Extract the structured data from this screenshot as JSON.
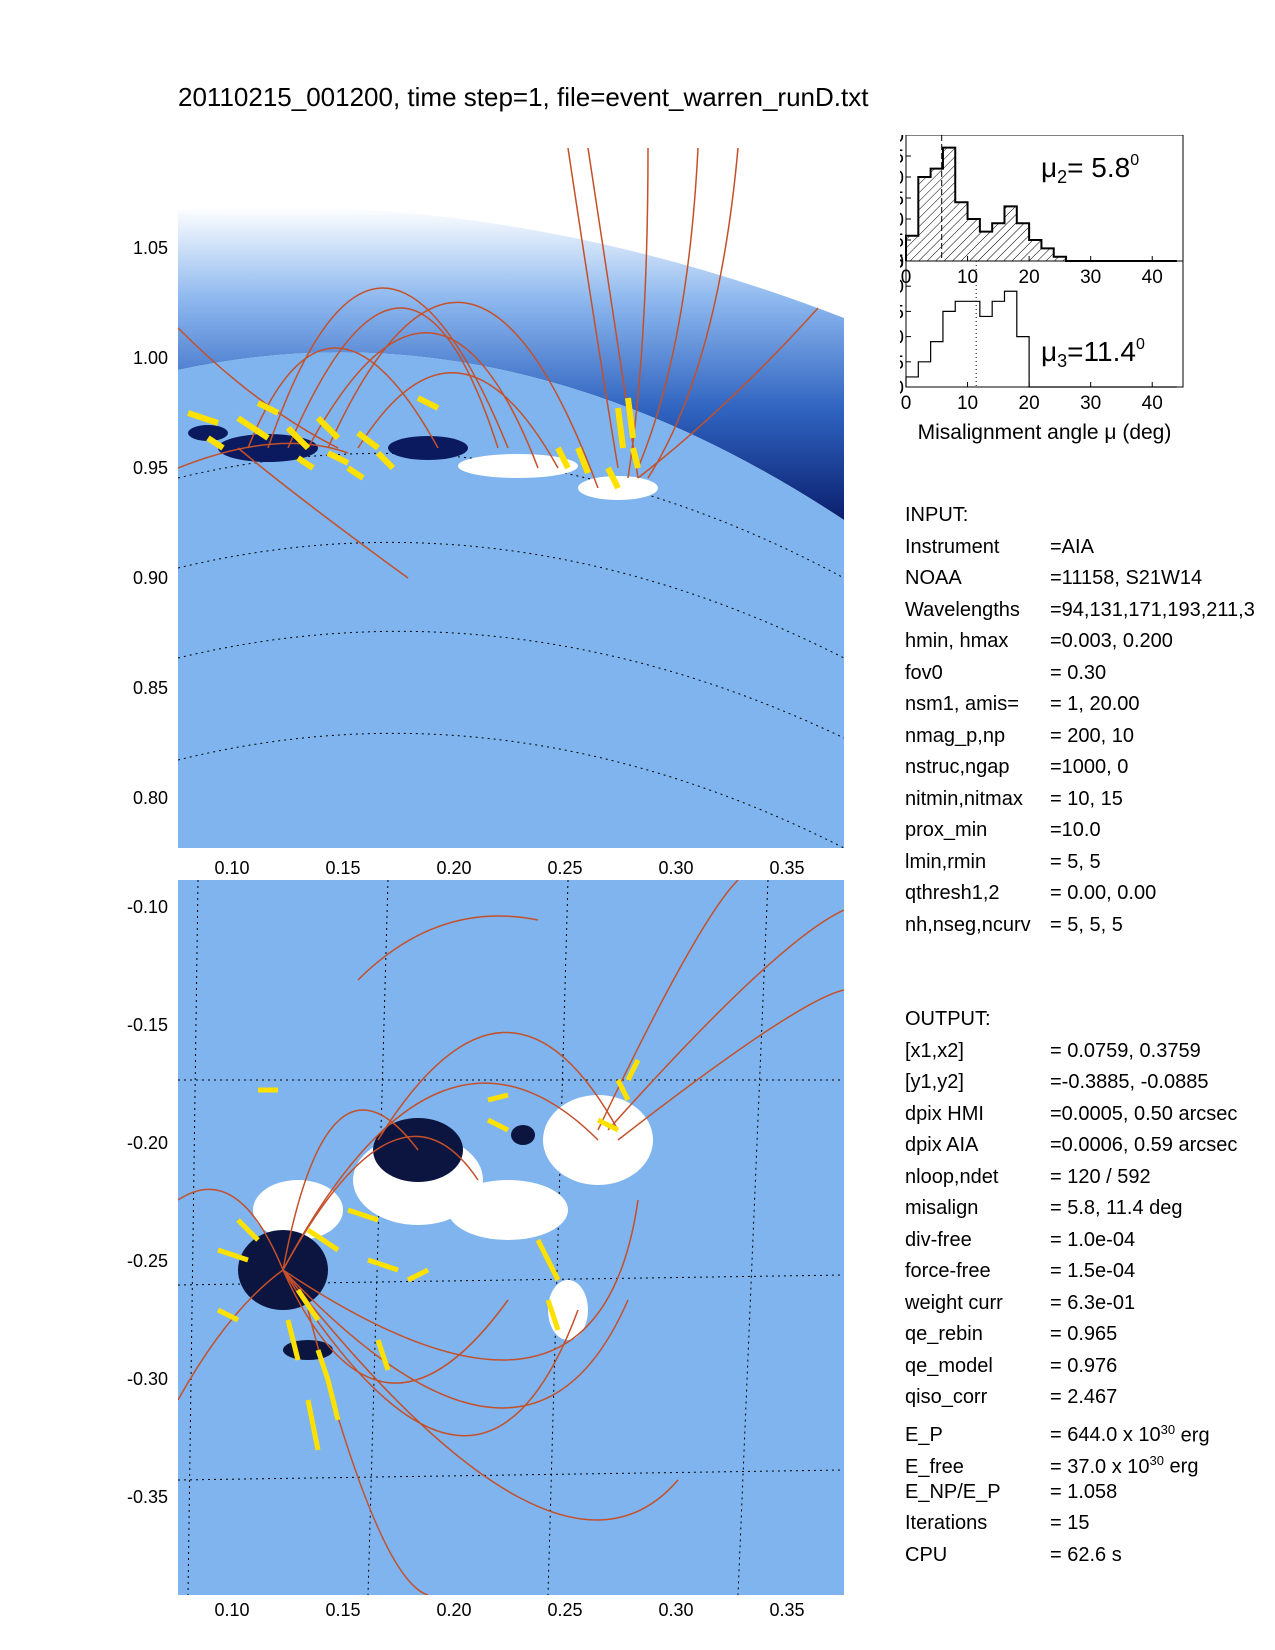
{
  "title": "20110215_001200, time step=1, file=event_warren_runD.txt",
  "top_panel": {
    "yticks": [
      "1.05",
      "1.00",
      "0.95",
      "0.90",
      "0.85",
      "0.80"
    ],
    "xticks": [
      "0.10",
      "0.15",
      "0.20",
      "0.25",
      "0.30",
      "0.35"
    ]
  },
  "bottom_panel": {
    "yticks": [
      "-0.10",
      "-0.15",
      "-0.20",
      "-0.25",
      "-0.30",
      "-0.35"
    ],
    "xticks": [
      "0.10",
      "0.15",
      "0.20",
      "0.25",
      "0.30",
      "0.35"
    ]
  },
  "chart_data": [
    {
      "type": "bar",
      "bin_edges": [
        0,
        2,
        4,
        6,
        8,
        10,
        12,
        14,
        16,
        18,
        20,
        22,
        24,
        26,
        28,
        30,
        32,
        34,
        36,
        38,
        40,
        42,
        44
      ],
      "values": [
        6,
        20,
        22,
        27,
        14,
        10,
        7,
        9,
        13,
        9,
        5,
        3,
        1,
        0,
        0,
        0,
        0,
        0,
        0,
        0,
        0,
        0
      ],
      "median": 5.8,
      "ylim": [
        0,
        30
      ],
      "xlim": [
        0,
        45
      ],
      "yticks": [
        "0",
        "5",
        "10",
        "15",
        "20",
        "25",
        "30"
      ],
      "xticks": [
        "0",
        "10",
        "20",
        "30",
        "40"
      ],
      "annotation_symbol": "μ",
      "annotation_sub": "2",
      "annotation_value": "= 5.8",
      "annotation_sup": "0",
      "hatched": true
    },
    {
      "type": "bar",
      "bin_edges": [
        0,
        2,
        4,
        6,
        8,
        10,
        12,
        14,
        16,
        18,
        20,
        22,
        24,
        26,
        28,
        30,
        32,
        34,
        36,
        38,
        40,
        42,
        44
      ],
      "values": [
        2,
        5,
        9,
        15,
        17,
        17,
        14,
        17,
        19,
        10,
        0,
        0,
        0,
        0,
        0,
        0,
        0,
        0,
        0,
        0,
        0,
        0
      ],
      "median": 11.4,
      "ylim": [
        0,
        25
      ],
      "xlim": [
        0,
        45
      ],
      "yticks": [
        "0",
        "5",
        "10",
        "15",
        "20",
        "25"
      ],
      "xticks": [
        "0",
        "10",
        "20",
        "30",
        "40"
      ],
      "xlabel": "Misalignment angle μ (deg)",
      "annotation_symbol": "μ",
      "annotation_sub": "3",
      "annotation_value": "=11.4",
      "annotation_sup": "0",
      "hatched": false
    }
  ],
  "input": {
    "header": "INPUT:",
    "rows": [
      {
        "key": "Instrument",
        "val": "=AIA"
      },
      {
        "key": "NOAA",
        "val": "=11158, S21W14"
      },
      {
        "key": "Wavelengths",
        "val": "=94,131,171,193,211,3"
      },
      {
        "key": "hmin, hmax",
        "val": "=0.003, 0.200"
      },
      {
        "key": "fov0",
        "val": "= 0.30"
      },
      {
        "key": "nsm1, amis=",
        "val": "=   1, 20.00"
      },
      {
        "key": "nmag_p,np",
        "val": "= 200,   10"
      },
      {
        "key": "nstruc,ngap",
        "val": "=1000,    0"
      },
      {
        "key": "nitmin,nitmax",
        "val": "=  10,   15"
      },
      {
        "key": "prox_min",
        "val": "=10.0"
      },
      {
        "key": "lmin,rmin",
        "val": "=   5,    5"
      },
      {
        "key": "qthresh1,2",
        "val": "= 0.00,  0.00"
      },
      {
        "key": "nh,nseg,ncurv",
        "val": "= 5,  5,  5"
      }
    ]
  },
  "output": {
    "header": "OUTPUT:",
    "rows": [
      {
        "key": "[x1,x2]",
        "val": "= 0.0759,  0.3759"
      },
      {
        "key": "[y1,y2]",
        "val": "=-0.3885, -0.0885"
      },
      {
        "key": "dpix HMI",
        "val": "=0.0005,  0.50 arcsec"
      },
      {
        "key": "dpix AIA",
        "val": "=0.0006,  0.59 arcsec"
      },
      {
        "key": "nloop,ndet",
        "val": "= 120 /  592"
      },
      {
        "key": "misalign",
        "val": "=  5.8,  11.4 deg"
      },
      {
        "key": "div-free",
        "val": "= 1.0e-04"
      },
      {
        "key": "force-free",
        "val": "= 1.5e-04"
      },
      {
        "key": "weight curr",
        "val": "= 6.3e-01"
      },
      {
        "key": "qe_rebin",
        "val": "= 0.965"
      },
      {
        "key": "qe_model",
        "val": "= 0.976"
      },
      {
        "key": "qiso_corr",
        "val": "= 2.467"
      },
      {
        "key": "E_P",
        "val": "=  644.0 x 10",
        "sup": "30",
        "tail": " erg"
      },
      {
        "key": "E_free",
        "val": "=  37.0 x 10",
        "sup": "30",
        "tail": " erg"
      },
      {
        "key": "E_NP/E_P",
        "val": "= 1.058"
      },
      {
        "key": "Iterations",
        "val": "= 15"
      },
      {
        "key": "CPU",
        "val": "=    62.6 s"
      }
    ]
  },
  "colors": {
    "disk_blue": "#7fb4ee",
    "corona_dark": "#0a1f6e",
    "loop_red": "#c4502a",
    "loop_yellow": "#ffe100"
  }
}
